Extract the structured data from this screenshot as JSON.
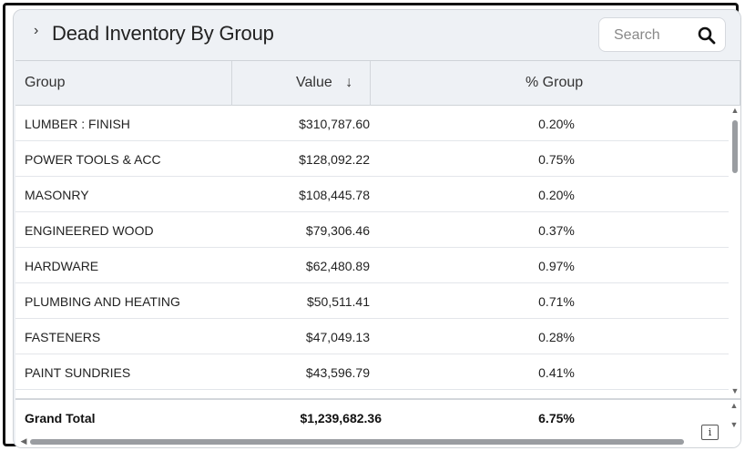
{
  "panel": {
    "title": "Dead Inventory By Group",
    "expand_icon": "chevron-right-icon"
  },
  "search": {
    "placeholder": "Search",
    "icon": "search-icon"
  },
  "table": {
    "columns": [
      {
        "label": "Group"
      },
      {
        "label": "Value",
        "sort_icon": "↓"
      },
      {
        "label": "% Group"
      }
    ],
    "rows": [
      {
        "group": "LUMBER : FINISH",
        "value": "$310,787.60",
        "pct": "0.20%"
      },
      {
        "group": "POWER TOOLS & ACC",
        "value": "$128,092.22",
        "pct": "0.75%"
      },
      {
        "group": "MASONRY",
        "value": "$108,445.78",
        "pct": "0.20%"
      },
      {
        "group": "ENGINEERED WOOD",
        "value": "$79,306.46",
        "pct": "0.37%"
      },
      {
        "group": "HARDWARE",
        "value": "$62,480.89",
        "pct": "0.97%"
      },
      {
        "group": "PLUMBING AND HEATING",
        "value": "$50,511.41",
        "pct": "0.71%"
      },
      {
        "group": "FASTENERS",
        "value": "$47,049.13",
        "pct": "0.28%"
      },
      {
        "group": "PAINT SUNDRIES",
        "value": "$43,596.79",
        "pct": "0.41%"
      }
    ],
    "total": {
      "group": "Grand Total",
      "value": "$1,239,682.36",
      "pct": "6.75%"
    }
  },
  "info_icon": "i"
}
